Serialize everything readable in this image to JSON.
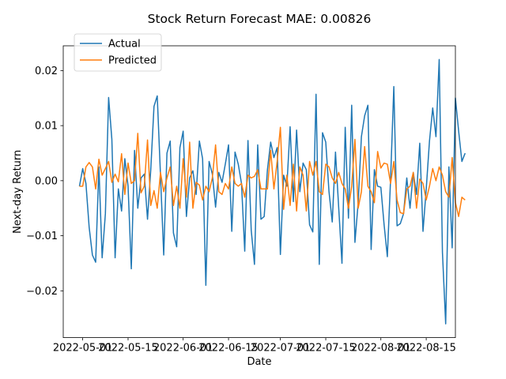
{
  "chart_data": {
    "type": "line",
    "title": "Stock Return Forecast MAE: 0.00826",
    "xlabel": "Date",
    "ylabel": "Next-day Return",
    "legend_position": "top-left",
    "grid": false,
    "xlim": [
      "2022-04-25",
      "2022-08-24"
    ],
    "ylim": [
      -0.0285,
      0.0245
    ],
    "x_ticks": [
      {
        "date": "2022-05-01",
        "label": "2022-05-01"
      },
      {
        "date": "2022-05-15",
        "label": "2022-05-15"
      },
      {
        "date": "2022-06-01",
        "label": "2022-06-01"
      },
      {
        "date": "2022-06-15",
        "label": "2022-06-15"
      },
      {
        "date": "2022-07-01",
        "label": "2022-07-01"
      },
      {
        "date": "2022-07-15",
        "label": "2022-07-15"
      },
      {
        "date": "2022-08-01",
        "label": "2022-08-01"
      },
      {
        "date": "2022-08-15",
        "label": "2022-08-15"
      }
    ],
    "y_ticks": [
      {
        "value": -0.02,
        "label": "−0.02"
      },
      {
        "value": -0.01,
        "label": "−0.01"
      },
      {
        "value": 0.0,
        "label": "0.00"
      },
      {
        "value": 0.01,
        "label": "0.01"
      },
      {
        "value": 0.02,
        "label": "0.02"
      }
    ],
    "dates_start": "2022-04-30",
    "series": [
      {
        "name": "Actual",
        "color": "#1f77b4",
        "values": [
          -0.001,
          0.0022,
          -0.0005,
          -0.0085,
          -0.0135,
          -0.0148,
          0.0025,
          -0.014,
          -0.006,
          0.0151,
          0.0075,
          -0.014,
          -0.0015,
          -0.0055,
          0.004,
          -0.001,
          -0.016,
          0.0055,
          -0.005,
          0.0005,
          0.0012,
          -0.007,
          0.002,
          0.0135,
          0.0154,
          0.001,
          -0.0135,
          0.005,
          0.0072,
          -0.0095,
          -0.012,
          0.006,
          0.009,
          -0.0065,
          0.0005,
          0.0018,
          -0.0025,
          0.0072,
          0.004,
          -0.019,
          0.0035,
          0.0012,
          -0.0048,
          0.0015,
          -0.0003,
          0.003,
          0.0065,
          -0.0092,
          0.0052,
          0.003,
          -0.0005,
          -0.0128,
          0.0073,
          -0.009,
          -0.0152,
          0.0065,
          -0.007,
          -0.0065,
          0.002,
          0.007,
          0.0042,
          0.006,
          -0.0134,
          0.001,
          -0.001,
          0.0098,
          -0.0038,
          0.0092,
          -0.002,
          0.0032,
          0.002,
          -0.008,
          -0.0093,
          0.0157,
          -0.0152,
          0.0087,
          0.007,
          -0.002,
          -0.0075,
          0.0052,
          -0.005,
          -0.015,
          0.0097,
          -0.0068,
          0.0137,
          -0.0112,
          -0.004,
          0.008,
          0.0118,
          0.0137,
          -0.0125,
          0.002,
          -0.001,
          -0.0012,
          -0.008,
          -0.0138,
          0.0003,
          0.0171,
          -0.0082,
          -0.0078,
          -0.006,
          0.0005,
          -0.005,
          0.0015,
          -0.0025,
          0.0068,
          -0.0092,
          -0.0015,
          0.0072,
          0.0132,
          0.008,
          0.022,
          -0.013,
          -0.026,
          0.0025,
          -0.0122,
          0.015,
          0.009,
          0.0035,
          0.005
        ]
      },
      {
        "name": "Predicted",
        "color": "#ff7f0e",
        "values": [
          -0.001,
          -0.001,
          0.0025,
          0.0033,
          0.0025,
          -0.0015,
          0.0039,
          0.001,
          0.0022,
          0.0035,
          -0.0003,
          0.0012,
          -0.0002,
          0.0049,
          -0.0025,
          0.0032,
          -0.0005,
          0.0,
          0.0086,
          -0.0022,
          -0.001,
          0.0074,
          -0.0045,
          -0.0018,
          -0.005,
          0.0015,
          -0.002,
          0.0005,
          0.0025,
          -0.0045,
          -0.001,
          -0.005,
          0.004,
          -0.003,
          0.007,
          -0.005,
          -0.0003,
          -0.0008,
          -0.0035,
          -0.001,
          -0.002,
          0.0005,
          0.0065,
          -0.002,
          -0.0025,
          -0.0005,
          -0.0015,
          0.0025,
          -0.0005,
          -0.001,
          -0.0005,
          -0.003,
          0.001,
          0.0005,
          0.0008,
          0.002,
          -0.0015,
          -0.0015,
          -0.0015,
          0.0055,
          -0.0015,
          0.0035,
          0.0097,
          -0.0052,
          0.001,
          -0.0045,
          0.003,
          -0.0055,
          0.0025,
          0.001,
          -0.0055,
          0.0035,
          0.001,
          0.0035,
          -0.002,
          -0.0025,
          0.003,
          0.0025,
          0.0005,
          -0.0005,
          0.0015,
          -0.0005,
          -0.0015,
          -0.005,
          -0.001,
          0.0075,
          -0.005,
          -0.002,
          0.0062,
          -0.001,
          -0.002,
          -0.004,
          0.0053,
          0.0023,
          0.0032,
          0.003,
          -0.0005,
          0.0035,
          -0.0035,
          -0.0058,
          -0.006,
          -0.0015,
          -0.001,
          0.0015,
          -0.005,
          0.0003,
          -0.0005,
          -0.0035,
          -0.001,
          0.0022,
          0.0,
          0.0025,
          0.001,
          -0.002,
          -0.003,
          0.0042,
          -0.004,
          -0.0065,
          -0.003,
          -0.0035
        ]
      }
    ]
  }
}
